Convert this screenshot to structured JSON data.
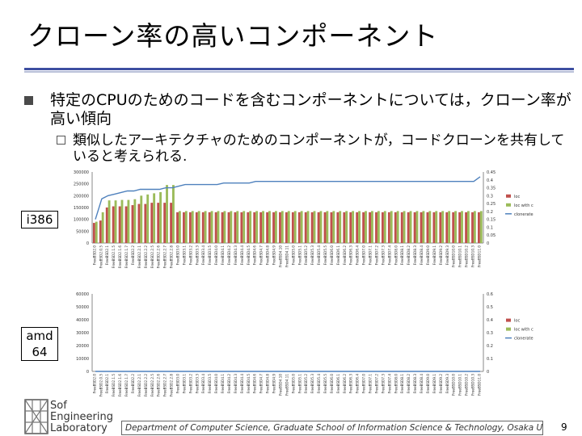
{
  "slide": {
    "title": "クローン率の高いコンポーネント",
    "bullet1": "特定のCPUのためのコードを含むコンポーネントについては，クローン率が高い傾向",
    "bullet2": "類似したアーキテクチャのためのコンポーネントが，コードクローンを共有していると考えられる.",
    "label_i386": "i386",
    "label_amd64_line1": "amd",
    "label_amd64_line2": "64",
    "logo_line1": "Sof",
    "logo_line2": "Engineering",
    "logo_line3": "Laboratory",
    "footer": "Department of Computer Science, Graduate School of Information Science & Technology, Osaka University",
    "page_number": "9"
  },
  "colors": {
    "loc": "#c0504d",
    "loc_with": "#9bbb59",
    "clonerate": "#4f81bd",
    "title_rule": "#3d4fa1"
  },
  "chart_data": [
    {
      "type": "bar",
      "title": "",
      "legend": [
        "loc",
        "loc with c",
        "clonerate"
      ],
      "legend_position": "right",
      "y_left_ticks": [
        "300000",
        "250000",
        "200000",
        "150000",
        "100000",
        "50000",
        "0"
      ],
      "y_left_range": [
        0,
        300000
      ],
      "y_right_ticks": [
        "0.45",
        "0.4",
        "0.35",
        "0.3",
        "0.25",
        "0.2",
        "0.15",
        "0.1",
        "0.05",
        "0"
      ],
      "y_right_range": [
        0,
        0.45
      ],
      "categories": [
        "FreeBSD2.0",
        "FreeBSD2.0.5",
        "FreeBSD2.1",
        "FreeBSD2.1.5",
        "FreeBSD2.1.6",
        "FreeBSD2.1.7",
        "FreeBSD2.2",
        "FreeBSD2.2.1",
        "FreeBSD2.2.2",
        "FreeBSD2.2.5",
        "FreeBSD2.2.6",
        "FreeBSD2.2.7",
        "FreeBSD2.2.8",
        "FreeBSD3.0",
        "FreeBSD3.1",
        "FreeBSD3.2",
        "FreeBSD3.3",
        "FreeBSD3.4",
        "FreeBSD3.5",
        "FreeBSD4.0",
        "FreeBSD4.1",
        "FreeBSD4.2",
        "FreeBSD4.3",
        "FreeBSD4.4",
        "FreeBSD4.5",
        "FreeBSD4.6",
        "FreeBSD4.7",
        "FreeBSD4.8",
        "FreeBSD4.9",
        "FreeBSD4.10",
        "FreeBSD4.11",
        "FreeBSD5.0",
        "FreeBSD5.1",
        "FreeBSD5.2",
        "FreeBSD5.3",
        "FreeBSD5.4",
        "FreeBSD5.5",
        "FreeBSD6.0",
        "FreeBSD6.1",
        "FreeBSD6.2",
        "FreeBSD6.3",
        "FreeBSD6.4",
        "FreeBSD7.0",
        "FreeBSD7.1",
        "FreeBSD7.2",
        "FreeBSD7.3",
        "FreeBSD7.4",
        "FreeBSD8.0",
        "FreeBSD8.1",
        "FreeBSD8.2",
        "FreeBSD8.3",
        "FreeBSD8.4",
        "FreeBSD9.0",
        "FreeBSD9.1",
        "FreeBSD9.2",
        "FreeBSD9.3",
        "FreeBSD10.0",
        "FreeBSD10.1",
        "FreeBSD10.2",
        "FreeBSD10.3",
        "FreeBSD11.0"
      ],
      "series": [
        {
          "name": "loc",
          "values": [
            85000,
            95000,
            150000,
            155000,
            155000,
            155000,
            160000,
            165000,
            165000,
            170000,
            170000,
            170000,
            170000,
            130000,
            130000,
            130000,
            130000,
            130000,
            130000,
            130000,
            130000,
            130000,
            130000,
            130000,
            130000,
            130000,
            130000,
            130000,
            130000,
            130000,
            130000,
            130000,
            130000,
            130000,
            130000,
            130000,
            130000,
            130000,
            130000,
            130000,
            130000,
            130000,
            130000,
            130000,
            130000,
            130000,
            130000,
            130000,
            130000,
            130000,
            130000,
            130000,
            130000,
            130000,
            130000,
            130000,
            130000,
            130000,
            130000,
            130000,
            130000
          ]
        },
        {
          "name": "loc with c",
          "values": [
            90000,
            130000,
            180000,
            180000,
            182000,
            182000,
            185000,
            200000,
            205000,
            210000,
            215000,
            245000,
            245000,
            135000,
            135000,
            135000,
            135000,
            135000,
            135000,
            135000,
            135000,
            135000,
            135000,
            135000,
            135000,
            135000,
            135000,
            135000,
            135000,
            135000,
            135000,
            135000,
            135000,
            135000,
            135000,
            135000,
            135000,
            135000,
            135000,
            135000,
            135000,
            135000,
            135000,
            135000,
            135000,
            135000,
            135000,
            135000,
            135000,
            135000,
            135000,
            135000,
            135000,
            135000,
            135000,
            135000,
            135000,
            135000,
            135000,
            135000,
            135000
          ]
        },
        {
          "name": "clonerate",
          "axis": "right",
          "values": [
            0.15,
            0.28,
            0.3,
            0.31,
            0.32,
            0.33,
            0.33,
            0.34,
            0.34,
            0.34,
            0.34,
            0.35,
            0.35,
            0.36,
            0.37,
            0.37,
            0.37,
            0.37,
            0.37,
            0.37,
            0.38,
            0.38,
            0.38,
            0.38,
            0.38,
            0.39,
            0.39,
            0.39,
            0.39,
            0.39,
            0.39,
            0.39,
            0.39,
            0.39,
            0.39,
            0.39,
            0.39,
            0.39,
            0.39,
            0.39,
            0.39,
            0.39,
            0.39,
            0.39,
            0.39,
            0.39,
            0.39,
            0.39,
            0.39,
            0.39,
            0.39,
            0.39,
            0.39,
            0.39,
            0.39,
            0.39,
            0.39,
            0.39,
            0.39,
            0.39,
            0.42
          ]
        }
      ]
    },
    {
      "type": "bar",
      "title": "",
      "legend": [
        "loc",
        "loc with c",
        "clonerate"
      ],
      "legend_position": "right",
      "y_left_ticks": [
        "60000",
        "50000",
        "40000",
        "30000",
        "20000",
        "10000",
        "0"
      ],
      "y_left_range": [
        0,
        60000
      ],
      "y_right_ticks": [
        "0.6",
        "0.5",
        "0.4",
        "0.3",
        "0.2",
        "0.1",
        "0"
      ],
      "y_right_range": [
        0,
        0.6
      ],
      "categories": [
        "FreeBSD2.0",
        "FreeBSD2.0.5",
        "FreeBSD2.1",
        "FreeBSD2.1.5",
        "FreeBSD2.1.6",
        "FreeBSD2.1.7",
        "FreeBSD2.2",
        "FreeBSD2.2.1",
        "FreeBSD2.2.2",
        "FreeBSD2.2.5",
        "FreeBSD2.2.6",
        "FreeBSD2.2.7",
        "FreeBSD2.2.8",
        "FreeBSD3.0",
        "FreeBSD3.1",
        "FreeBSD3.2",
        "FreeBSD3.3",
        "FreeBSD3.4",
        "FreeBSD3.5",
        "FreeBSD4.0",
        "FreeBSD4.1",
        "FreeBSD4.2",
        "FreeBSD4.3",
        "FreeBSD4.4",
        "FreeBSD4.5",
        "FreeBSD4.6",
        "FreeBSD4.7",
        "FreeBSD4.8",
        "FreeBSD4.9",
        "FreeBSD4.10",
        "FreeBSD4.11",
        "FreeBSD5.0",
        "FreeBSD5.1",
        "FreeBSD5.2",
        "FreeBSD5.3",
        "FreeBSD5.4",
        "FreeBSD5.5",
        "FreeBSD6.0",
        "FreeBSD6.1",
        "FreeBSD6.2",
        "FreeBSD6.3",
        "FreeBSD6.4",
        "FreeBSD7.0",
        "FreeBSD7.1",
        "FreeBSD7.2",
        "FreeBSD7.3",
        "FreeBSD7.4",
        "FreeBSD8.0",
        "FreeBSD8.1",
        "FreeBSD8.2",
        "FreeBSD8.3",
        "FreeBSD8.4",
        "FreeBSD9.0",
        "FreeBSD9.1",
        "FreeBSD9.2",
        "FreeBSD9.3",
        "FreeBSD10.0",
        "FreeBSD10.1",
        "FreeBSD10.2",
        "FreeBSD10.3",
        "FreeBSD11.0"
      ],
      "series": [
        {
          "name": "loc",
          "values": [
            0,
            0,
            0,
            0,
            0,
            0,
            0,
            0,
            0,
            0,
            0,
            0,
            0,
            0,
            0,
            0,
            0,
            0,
            0,
            0,
            0,
            0,
            0,
            0,
            0,
            0,
            0,
            0,
            0,
            0,
            0,
            0,
            0,
            0,
            0,
            0,
            0,
            0,
            0,
            0,
            0,
            0,
            0,
            0,
            0,
            0,
            0,
            0,
            0,
            0,
            0,
            0,
            0,
            0,
            0,
            0,
            0,
            0,
            0,
            0,
            0
          ]
        },
        {
          "name": "loc with c",
          "values": [
            0,
            0,
            0,
            0,
            0,
            0,
            0,
            0,
            0,
            0,
            0,
            0,
            0,
            0,
            0,
            0,
            0,
            0,
            0,
            0,
            0,
            0,
            0,
            0,
            0,
            0,
            0,
            0,
            0,
            0,
            0,
            0,
            0,
            0,
            0,
            0,
            0,
            0,
            0,
            0,
            0,
            0,
            0,
            0,
            0,
            0,
            0,
            0,
            0,
            0,
            0,
            0,
            0,
            0,
            0,
            0,
            0,
            0,
            0,
            0,
            0
          ]
        },
        {
          "name": "clonerate",
          "axis": "right",
          "values": [
            0,
            0,
            0,
            0,
            0,
            0,
            0,
            0,
            0,
            0,
            0,
            0,
            0,
            0,
            0,
            0,
            0,
            0,
            0,
            0,
            0,
            0,
            0,
            0,
            0,
            0,
            0,
            0,
            0,
            0,
            0,
            0,
            0,
            0,
            0,
            0,
            0,
            0,
            0,
            0,
            0,
            0,
            0,
            0,
            0,
            0,
            0,
            0,
            0,
            0,
            0,
            0,
            0,
            0,
            0,
            0,
            0,
            0,
            0,
            0,
            0
          ]
        }
      ]
    }
  ]
}
